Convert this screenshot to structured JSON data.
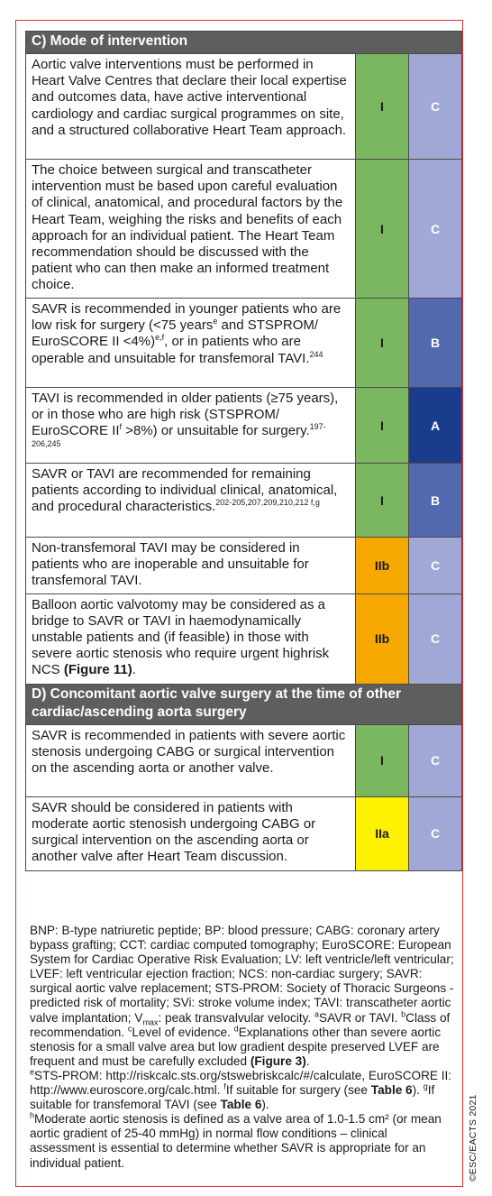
{
  "colors": {
    "header_bg": "#5e5e5e",
    "class_I": "#7bb660",
    "class_IIa": "#fff200",
    "class_IIb": "#f7a800",
    "level_A": "#1b3c8c",
    "level_B": "#5468b0",
    "level_C": "#a2a8d5",
    "frame": "#e0312b"
  },
  "section_c": {
    "title": "C) Mode of intervention",
    "rows": [
      {
        "text": "Aortic valve interventions must be performed in Heart Valve Centres that declare their local expertise and outcomes data, have active interventional cardiology and cardiac surgical programmes on site, and a structured collaborative Heart Team approach.",
        "class": "I",
        "level": "C"
      },
      {
        "text": "The choice between surgical and transcatheter intervention must be based upon careful evaluation of clinical, anatomical, and procedural factors by the Heart Team, weighing the risks and benefits of each approach for an individual patient. The Heart Team recommendation should be discussed with the patient who can then make an informed treatment choice.",
        "class": "I",
        "level": "C"
      },
      {
        "text_a": "SAVR is recommended in younger patients who are low risk for surgery (<75 years",
        "sup_a": "e",
        "text_b": " and STSPROM/ EuroSCORE II <4%)",
        "sup_b": "e,f",
        "text_c": ", or in patients who are operable and unsuitable for transfemoral TAVI.",
        "sup_c": "244",
        "class": "I",
        "level": "B"
      },
      {
        "text_a": "TAVI is recommended in older patients (≥75 years), or in those who are high risk (STSPROM/ EuroSCORE II",
        "sup_a": "f",
        "text_b": " >8%) or unsuitable for surgery.",
        "sup_b": "197-206,245",
        "class": "I",
        "level": "A"
      },
      {
        "text_a": "SAVR or TAVI are recommended for remaining patients according to individual clinical, anatomical, and procedural characteristics.",
        "sup_a": "202-205,207,209,210,212 f,g",
        "class": "I",
        "level": "B"
      },
      {
        "text": "Non-transfemoral TAVI may be considered in patients who are inoperable and unsuitable for transfemoral TAVI.",
        "class": "IIb",
        "level": "C"
      },
      {
        "text_a": "Balloon aortic valvotomy may be considered as a bridge to SAVR or TAVI in haemodynamically unstable patients and (if feasible) in those with severe aortic stenosis who require urgent highrisk NCS ",
        "bold": "(Figure 11)",
        "text_b": ".",
        "class": "IIb",
        "level": "C"
      }
    ]
  },
  "section_d": {
    "title": "D) Concomitant aortic valve surgery at the time of other cardiac/ascending aorta surgery",
    "rows": [
      {
        "text": "SAVR is recommended in patients with severe aortic stenosis undergoing CABG or surgical intervention on the ascending aorta or another valve.",
        "class": "I",
        "level": "C"
      },
      {
        "text": "SAVR should be considered in patients with moderate aortic stenosish undergoing CABG or surgical intervention on the ascending aorta or another valve after Heart Team discussion.",
        "class": "IIa",
        "level": "C"
      }
    ]
  },
  "footnotes": {
    "abbrev": "BNP: B-type natriuretic peptide; BP: blood pressure; CABG: coronary artery bypass grafting; CCT: cardiac computed tomography; EuroSCORE: European System for Cardiac Operative Risk Evaluation; LV: left ventricle/left ventricular; LVEF: left ventricular ejection fraction; NCS: non-cardiac surgery; SAVR: surgical aortic valve replacement; STS-PROM: Society of Thoracic Surgeons - predicted risk of mortality; SVi: stroke volume index; TAVI: transcatheter aortic valve implantation; V",
    "vmax_sub": "max",
    "vmax_text": ": peak transvalvular velocity. ",
    "a_sup": "a",
    "a_text": "SAVR or TAVI. ",
    "b_sup": "b",
    "b_text": "Class of recommendation. ",
    "c_sup": "c",
    "c_text": "Level of evidence. ",
    "d_sup": "d",
    "d_text": "Explanations other than severe aortic stenosis for a small valve area but low gradient despite preserved LVEF are frequent and must be carefully excluded ",
    "d_bold": "(Figure 3)",
    "d_end": ".",
    "e_sup": "e",
    "e_text": "STS-PROM: http://riskcalc.sts.org/stswebriskcalc/#/calculate, EuroSCORE II: http://www.euroscore.org/calc.html. ",
    "f_sup": "f",
    "f_text": "If suitable for surgery (see ",
    "f_bold": "Table 6",
    "f_end": "). ",
    "g_sup": "g",
    "g_text": "If suitable for transfemoral TAVI (see ",
    "g_bold": "Table 6",
    "g_end": ").",
    "h_sup": "h",
    "h_text": "Moderate aortic stenosis is defined as a valve area of 1.0-1.5 cm² (or mean aortic gradient of 25-40 mmHg) in normal flow conditions – clinical assessment is essential to determine whether SAVR is appropriate for an individual patient."
  },
  "copyright": "©ESC/EACTS 2021"
}
